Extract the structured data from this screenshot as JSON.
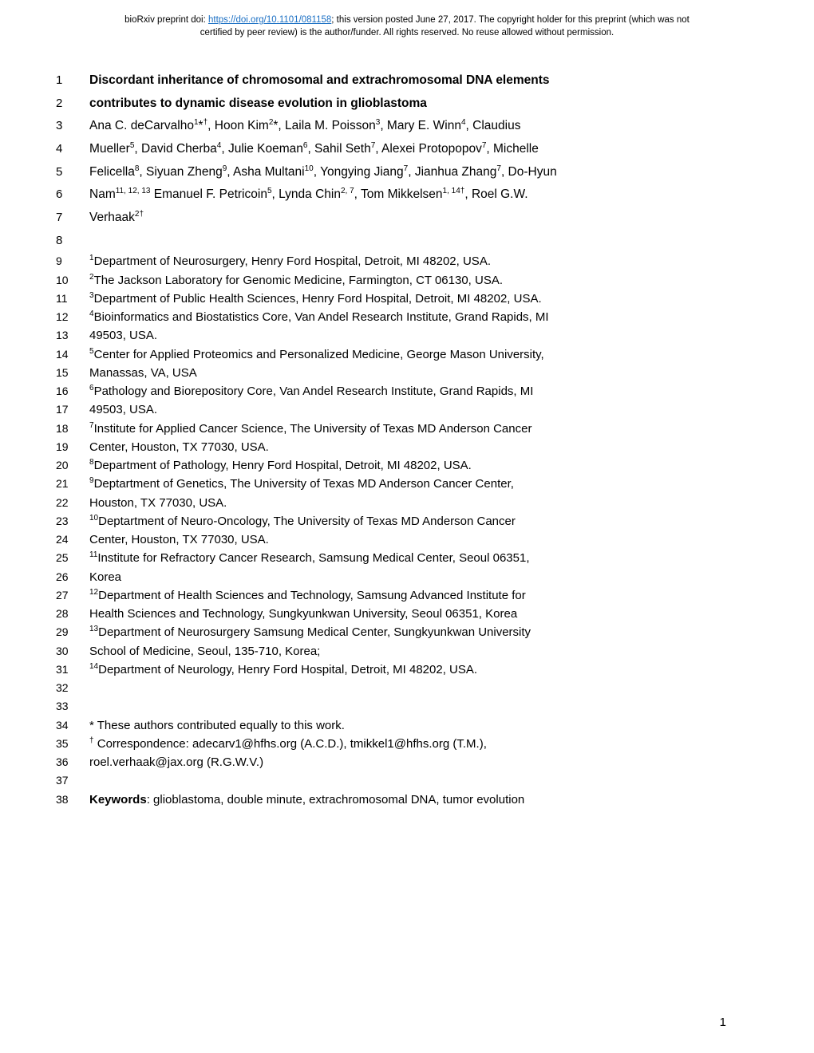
{
  "header": {
    "prefix": "bioRxiv preprint doi: ",
    "doi_link": "https://doi.org/10.1101/081158",
    "after_doi": "; this version posted June 27, 2017. The copyright holder for this preprint (which was not",
    "line2": "certified by peer review) is the author/funder. All rights reserved. No reuse allowed without permission."
  },
  "lines": [
    {
      "n": "1",
      "html": "<span class='bold'>Discordant inheritance of chromosomal and extrachromosomal DNA elements</span>",
      "cls": ""
    },
    {
      "n": "2",
      "html": "<span class='bold'>contributes to dynamic disease evolution in glioblastoma</span>",
      "cls": ""
    },
    {
      "n": "3",
      "html": "Ana C. deCarvalho<sup>1</sup>*<sup>†</sup>, Hoon Kim<sup>2</sup>*, Laila M. Poisson<sup>3</sup>, Mary E. Winn<sup>4</sup>, Claudius",
      "cls": ""
    },
    {
      "n": "4",
      "html": "Mueller<sup>5</sup>, David Cherba<sup>4</sup>, Julie Koeman<sup>6</sup>, Sahil Seth<sup>7</sup>, Alexei Protopopov<sup>7</sup>, Michelle",
      "cls": ""
    },
    {
      "n": "5",
      "html": "Felicella<sup>8</sup>, Siyuan Zheng<sup>9</sup>, Asha Multani<sup>10</sup>, Yongying Jiang<sup>7</sup>, Jianhua Zhang<sup>7</sup>, Do-Hyun",
      "cls": ""
    },
    {
      "n": "6",
      "html": "Nam<sup>11, 12, 13</sup> Emanuel F. Petricoin<sup>5</sup>, Lynda Chin<sup>2, 7</sup>, Tom Mikkelsen<sup>1, 14†</sup>, Roel G.W.",
      "cls": ""
    },
    {
      "n": "7",
      "html": "Verhaak<sup>2†</sup>",
      "cls": ""
    },
    {
      "n": "8",
      "html": "&nbsp;",
      "cls": ""
    },
    {
      "n": "9",
      "html": "<sup>1</sup>Department of Neurosurgery, Henry Ford Hospital, Detroit, MI 48202, USA.",
      "cls": "aff"
    },
    {
      "n": "10",
      "html": "<sup>2</sup>The Jackson Laboratory for Genomic Medicine, Farmington, CT 06130, USA.",
      "cls": "aff"
    },
    {
      "n": "11",
      "html": "<sup>3</sup>Department of Public Health Sciences, Henry Ford Hospital, Detroit, MI 48202, USA.",
      "cls": "aff"
    },
    {
      "n": "12",
      "html": "<sup>4</sup>Bioinformatics and Biostatistics Core, Van Andel Research Institute, Grand Rapids, MI",
      "cls": "aff"
    },
    {
      "n": "13",
      "html": "49503, USA.",
      "cls": "aff"
    },
    {
      "n": "14",
      "html": "<sup>5</sup>Center for Applied Proteomics and Personalized Medicine, George Mason University,",
      "cls": "aff"
    },
    {
      "n": "15",
      "html": "Manassas, VA, USA",
      "cls": "aff"
    },
    {
      "n": "16",
      "html": "<sup>6</sup>Pathology and Biorepository Core, Van Andel Research Institute, Grand Rapids, MI",
      "cls": "aff"
    },
    {
      "n": "17",
      "html": "49503, USA.",
      "cls": "aff"
    },
    {
      "n": "18",
      "html": "<sup>7</sup>Institute for Applied Cancer Science, The University of Texas MD Anderson Cancer",
      "cls": "aff"
    },
    {
      "n": "19",
      "html": "Center, Houston, TX 77030, USA.",
      "cls": "aff"
    },
    {
      "n": "20",
      "html": "<sup>8</sup>Department of Pathology, Henry Ford Hospital, Detroit, MI 48202, USA.",
      "cls": "aff"
    },
    {
      "n": "21",
      "html": "<sup>9</sup>Deptartment of  Genetics, The University of Texas MD Anderson Cancer Center,",
      "cls": "aff"
    },
    {
      "n": "22",
      "html": "Houston, TX 77030, USA.",
      "cls": "aff"
    },
    {
      "n": "23",
      "html": "<sup>10</sup>Deptartment of  Neuro-Oncology, The University of Texas MD Anderson Cancer",
      "cls": "aff"
    },
    {
      "n": "24",
      "html": "Center, Houston, TX 77030, USA.",
      "cls": "aff"
    },
    {
      "n": "25",
      "html": "<sup>11</sup>Institute for Refractory Cancer Research, Samsung Medical Center, Seoul 06351,",
      "cls": "aff"
    },
    {
      "n": "26",
      "html": "Korea",
      "cls": "aff"
    },
    {
      "n": "27",
      "html": "<sup>12</sup>Department of Health Sciences and Technology, Samsung Advanced Institute for",
      "cls": "aff"
    },
    {
      "n": "28",
      "html": "Health Sciences and Technology, Sungkyunkwan University, Seoul 06351, Korea",
      "cls": "aff"
    },
    {
      "n": "29",
      "html": "<sup>13</sup>Department of Neurosurgery Samsung Medical Center, Sungkyunkwan University",
      "cls": "aff"
    },
    {
      "n": "30",
      "html": "School of Medicine, Seoul, 135-710, Korea;",
      "cls": "aff"
    },
    {
      "n": "31",
      "html": "<sup>14</sup>Department of Neurology, Henry Ford Hospital, Detroit, MI 48202, USA.",
      "cls": "aff"
    },
    {
      "n": "32",
      "html": "&nbsp;",
      "cls": "aff spacer"
    },
    {
      "n": "33",
      "html": "&nbsp;",
      "cls": "aff spacer"
    },
    {
      "n": "34",
      "html": "* These authors contributed equally to this work.",
      "cls": "aff"
    },
    {
      "n": "35",
      "html": "<sup>†</sup> Correspondence: adecarv1@hfhs.org (A.C.D.), tmikkel1@hfhs.org (T.M.),",
      "cls": "aff"
    },
    {
      "n": "36",
      "html": "roel.verhaak@jax.org (R.G.W.V.)",
      "cls": "aff"
    },
    {
      "n": "37",
      "html": "&nbsp;",
      "cls": "aff spacer"
    },
    {
      "n": "38",
      "html": "<span class='bold'>Keywords</span>: glioblastoma, double minute, extrachromosomal DNA, tumor evolution",
      "cls": "aff"
    }
  ],
  "page_number": "1"
}
